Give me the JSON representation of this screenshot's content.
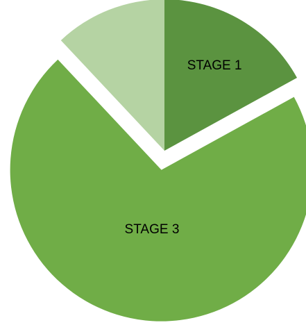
{
  "chart_data": {
    "type": "pie",
    "categories": [
      "STAGE 1",
      "STAGE 3",
      null
    ],
    "values": [
      17,
      71,
      12
    ],
    "colors": [
      "#5b9340",
      "#70ad47",
      "#b5d3a3"
    ],
    "exploded": [
      false,
      true,
      false
    ]
  }
}
